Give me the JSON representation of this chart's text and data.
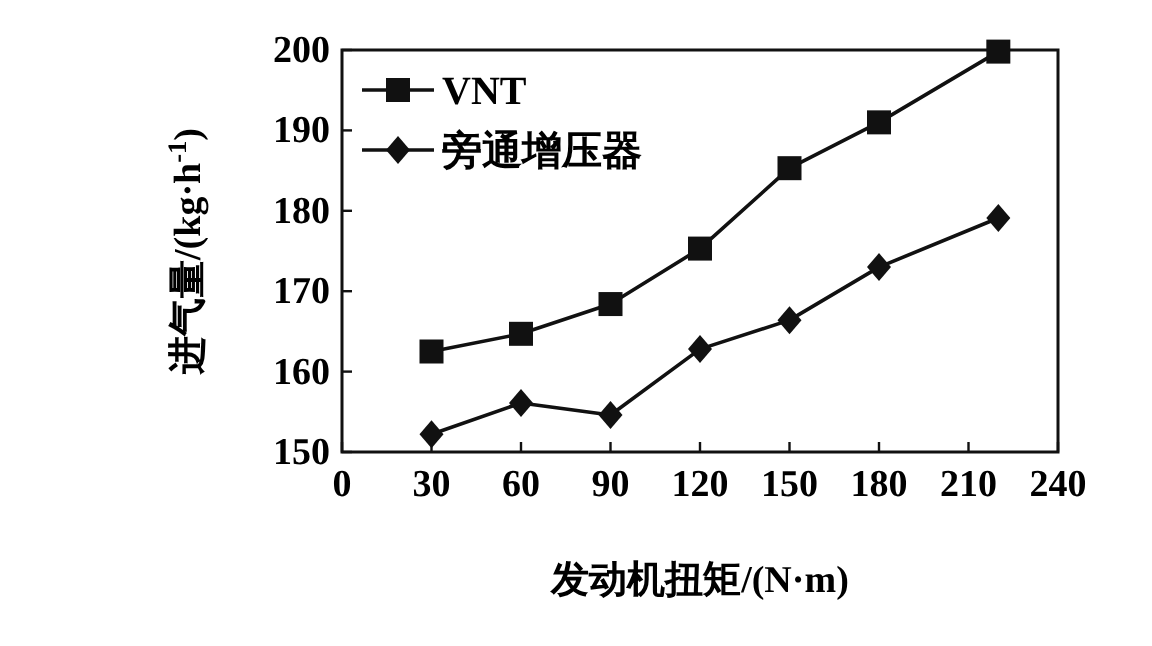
{
  "chart_data": {
    "type": "line",
    "xlabel": "发动机扭矩/(N·m)",
    "ylabel": "进气量/(kg·h$^{-1}$)",
    "x": [
      30,
      60,
      90,
      120,
      150,
      180,
      220
    ],
    "series": [
      {
        "name": "VNT",
        "color": "#111111",
        "marker": "square",
        "values": [
          162.5,
          164.7,
          168.4,
          175.3,
          185.3,
          191.0,
          199.8
        ]
      },
      {
        "name": "旁通增压器",
        "color": "#111111",
        "marker": "diamond",
        "values": [
          152.2,
          156.1,
          154.6,
          162.8,
          166.4,
          173.0,
          179.1
        ]
      }
    ],
    "xlim": [
      0,
      240
    ],
    "xticks": [
      0,
      30,
      60,
      90,
      120,
      150,
      180,
      210,
      240
    ],
    "ylim": [
      150,
      200
    ],
    "yticks": [
      150,
      160,
      170,
      180,
      190,
      200
    ],
    "grid": false,
    "legend": "top left"
  }
}
